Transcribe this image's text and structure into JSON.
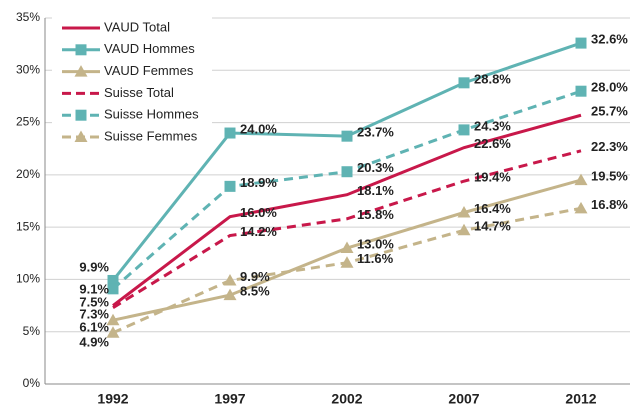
{
  "chart_data": {
    "type": "line",
    "categories": [
      "1992",
      "1997",
      "2002",
      "2007",
      "2012"
    ],
    "ylim": [
      0,
      35
    ],
    "yticks": [
      {
        "value": 0,
        "label": "0%"
      },
      {
        "value": 5,
        "label": "5%"
      },
      {
        "value": 10,
        "label": "10%"
      },
      {
        "value": 15,
        "label": "15%"
      },
      {
        "value": 20,
        "label": "20%"
      },
      {
        "value": 25,
        "label": "25%"
      },
      {
        "value": 30,
        "label": "30%"
      },
      {
        "value": 35,
        "label": "35%"
      }
    ],
    "grid": true,
    "legend": "top-left",
    "series": [
      {
        "name": "VAUD Total",
        "color": "#c8184a",
        "dashed": false,
        "marker": "none",
        "values": [
          7.5,
          16.0,
          18.1,
          22.6,
          25.7
        ],
        "value_labels": [
          "7.5%",
          "16.0%",
          "18.1%",
          "22.6%",
          "25.7%"
        ]
      },
      {
        "name": "VAUD Hommes",
        "color": "#5fb3b3",
        "dashed": false,
        "marker": "square",
        "values": [
          9.9,
          24.0,
          23.7,
          28.8,
          32.6
        ],
        "value_labels": [
          "9.9%",
          "24.0%",
          "23.7%",
          "28.8%",
          "32.6%"
        ]
      },
      {
        "name": "VAUD Femmes",
        "color": "#c4b48a",
        "dashed": false,
        "marker": "triangle",
        "values": [
          6.1,
          8.5,
          13.0,
          16.4,
          19.5
        ],
        "value_labels": [
          "6.1%",
          "8.5%",
          "13.0%",
          "16.4%",
          "19.5%"
        ]
      },
      {
        "name": "Suisse Total",
        "color": "#c8184a",
        "dashed": true,
        "marker": "none",
        "values": [
          7.3,
          14.2,
          15.8,
          19.4,
          22.3
        ],
        "value_labels": [
          "7.3%",
          "14.2%",
          "15.8%",
          "19.4%",
          "22.3%"
        ]
      },
      {
        "name": "Suisse Hommes",
        "color": "#5fb3b3",
        "dashed": true,
        "marker": "square",
        "values": [
          9.1,
          18.9,
          20.3,
          24.3,
          28.0
        ],
        "value_labels": [
          "9.1%",
          "18.9%",
          "20.3%",
          "24.3%",
          "28.0%"
        ]
      },
      {
        "name": "Suisse Femmes",
        "color": "#c4b48a",
        "dashed": true,
        "marker": "triangle",
        "values": [
          4.9,
          9.9,
          11.6,
          14.7,
          16.8
        ],
        "value_labels": [
          "4.9%",
          "9.9%",
          "11.6%",
          "14.7%",
          "16.8%"
        ]
      }
    ]
  }
}
